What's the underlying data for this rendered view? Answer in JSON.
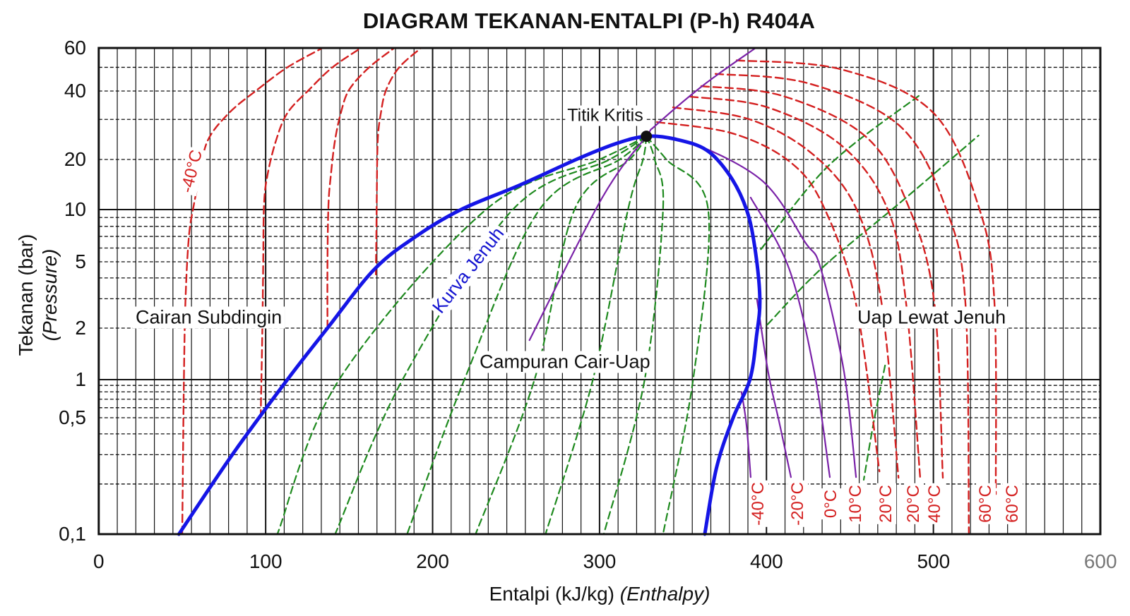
{
  "chart_data": {
    "type": "line",
    "title": "DIAGRAM TEKANAN-ENTALPI (P-h) R404A",
    "xlabel": "Entalpi (kJ/kg)",
    "xlabel_italic": "(Enthalpy)",
    "ylabel": "Tekanan (bar)",
    "ylabel_italic": "(Pressure)",
    "xlim": [
      0,
      600
    ],
    "ylim": [
      0.1,
      60
    ],
    "yscale": "log",
    "grid": true,
    "x_ticks": [
      "0",
      "100",
      "200",
      "300",
      "400",
      "500",
      "600"
    ],
    "x_tick_values": [
      0,
      100,
      200,
      300,
      400,
      500,
      600
    ],
    "y_ticks": [
      "60",
      "40",
      "20",
      "10",
      "5",
      "2",
      "1",
      "0,5",
      "0,1"
    ],
    "y_tick_values": [
      60,
      40,
      20,
      10,
      5,
      2,
      1,
      0.5,
      0.1
    ],
    "colors": {
      "saturation": "#1515e6",
      "isotherm": "#d42020",
      "quality": "#1f8a1f",
      "isentrope": "#7a22a8",
      "grid": "#111111"
    },
    "saturation_curve": {
      "name": "Kurva Jenuh",
      "points": [
        [
          48,
          0.1
        ],
        [
          80,
          0.3
        ],
        [
          113,
          1
        ],
        [
          137,
          2
        ],
        [
          165,
          4.5
        ],
        [
          190,
          7
        ],
        [
          217,
          10
        ],
        [
          252,
          14
        ],
        [
          286,
          20
        ],
        [
          310,
          23.5
        ],
        [
          328,
          25.3
        ],
        [
          345,
          24.6
        ],
        [
          364,
          22
        ],
        [
          378,
          16
        ],
        [
          388,
          10
        ],
        [
          393,
          6
        ],
        [
          396,
          3
        ],
        [
          394,
          1.8
        ],
        [
          390,
          1
        ],
        [
          380,
          0.5
        ],
        [
          370,
          0.25
        ],
        [
          363,
          0.1
        ]
      ]
    },
    "critical_point": {
      "label": "Titik Kritis",
      "h": 328,
      "p": 25.3
    },
    "liquid_isotherms": [
      [
        [
          50,
          0.1
        ],
        [
          51,
          1
        ],
        [
          52,
          3
        ],
        [
          54,
          7
        ],
        [
          57,
          10.7
        ],
        [
          60,
          15
        ],
        [
          65,
          24
        ],
        [
          78,
          32
        ],
        [
          95,
          40.5
        ],
        [
          113,
          50
        ],
        [
          134,
          60
        ]
      ],
      [
        [
          97,
          0.5
        ],
        [
          98,
          2
        ],
        [
          98.5,
          5
        ],
        [
          99,
          10.7
        ],
        [
          101,
          16
        ],
        [
          106,
          24
        ],
        [
          113,
          32
        ],
        [
          126,
          40.5
        ],
        [
          140,
          50
        ],
        [
          157,
          60
        ]
      ],
      [
        [
          137,
          2
        ],
        [
          137,
          5
        ],
        [
          137.6,
          10.7
        ],
        [
          139,
          16
        ],
        [
          141.4,
          24
        ],
        [
          145,
          32
        ],
        [
          150,
          40.5
        ],
        [
          162,
          50
        ],
        [
          177,
          60
        ]
      ],
      [
        [
          166,
          4.2
        ],
        [
          166.5,
          10.7
        ],
        [
          167.1,
          24
        ],
        [
          169,
          32
        ],
        [
          172.2,
          40.5
        ],
        [
          180,
          50
        ],
        [
          193,
          60
        ]
      ]
    ],
    "vapor_isotherms": [
      [
        [
          334.3,
          29.2
        ],
        [
          380,
          26
        ],
        [
          415,
          19
        ],
        [
          435,
          10
        ],
        [
          453.5,
          2.82
        ],
        [
          467.6,
          0.238
        ]
      ],
      [
        [
          344,
          33.9
        ],
        [
          390,
          30
        ],
        [
          428,
          21
        ],
        [
          454,
          10
        ],
        [
          468.9,
          2.82
        ],
        [
          479,
          0.218
        ]
      ],
      [
        [
          354.2,
          37.8
        ],
        [
          400,
          34
        ],
        [
          445,
          23
        ],
        [
          472.6,
          10
        ],
        [
          483.6,
          2.82
        ],
        [
          492,
          0.218
        ]
      ],
      [
        [
          360.9,
          41.9
        ],
        [
          410,
          38
        ],
        [
          460,
          25
        ],
        [
          485.8,
          10
        ],
        [
          500.5,
          2.82
        ],
        [
          505.6,
          0.218
        ]
      ],
      [
        [
          369.4,
          47
        ],
        [
          425,
          43
        ],
        [
          480,
          28
        ],
        [
          507.7,
          10
        ],
        [
          519.1,
          2.82
        ],
        [
          521.2,
          0.1
        ]
      ],
      [
        [
          382.1,
          53.4
        ],
        [
          445,
          49
        ],
        [
          500,
          32
        ],
        [
          527.6,
          10
        ],
        [
          536.5,
          2.82
        ],
        [
          537.3,
          0.174
        ]
      ]
    ],
    "quality_lines": [
      [
        [
          328,
          25.3
        ],
        [
          300,
          20
        ],
        [
          232,
          10
        ],
        [
          144,
          1
        ],
        [
          107,
          0.1
        ]
      ],
      [
        [
          328,
          25.3
        ],
        [
          306,
          20
        ],
        [
          248,
          10
        ],
        [
          182,
          1
        ],
        [
          141.6,
          0.1
        ]
      ],
      [
        [
          328,
          25.3
        ],
        [
          312,
          20
        ],
        [
          264,
          10
        ],
        [
          219,
          1
        ],
        [
          184.7,
          0.1
        ]
      ],
      [
        [
          328,
          25.3
        ],
        [
          318,
          20
        ],
        [
          285,
          10
        ],
        [
          261,
          1
        ],
        [
          225.7,
          0.1
        ]
      ],
      [
        [
          328,
          25.3
        ],
        [
          326,
          20
        ],
        [
          317,
          10
        ],
        [
          296,
          1
        ],
        [
          267.6,
          0.1
        ]
      ],
      [
        [
          328,
          25.3
        ],
        [
          333,
          20
        ],
        [
          338,
          10
        ],
        [
          327,
          1
        ],
        [
          302.5,
          0.1
        ]
      ],
      [
        [
          328,
          25.3
        ],
        [
          340,
          20
        ],
        [
          365,
          10
        ],
        [
          356,
          1
        ],
        [
          338,
          0.1
        ]
      ]
    ],
    "superheat_green_lines": [
      [
        [
          396.6,
          5.9
        ],
        [
          437,
          18.3
        ],
        [
          491.6,
          38.3
        ]
      ],
      [
        [
          400.5,
          2.1
        ],
        [
          433,
          4.57
        ],
        [
          480,
          11
        ],
        [
          527,
          25.5
        ]
      ],
      [
        [
          471,
          1.21
        ],
        [
          464,
          0.46
        ],
        [
          458.2,
          0.212
        ]
      ]
    ],
    "isentropes": [
      [
        [
          258,
          1.7
        ],
        [
          301.6,
          11.8
        ],
        [
          328,
          25.3
        ],
        [
          333.5,
          28.2
        ],
        [
          362.6,
          42.5
        ],
        [
          393.4,
          60
        ]
      ],
      [
        [
          385,
          0.8
        ],
        [
          388,
          0.45
        ],
        [
          390.5,
          0.22
        ]
      ],
      [
        [
          394.3,
          2.96
        ],
        [
          401,
          1.1
        ],
        [
          408,
          0.45
        ],
        [
          414.6,
          0.22
        ]
      ],
      [
        [
          390.5,
          11.8
        ],
        [
          413.4,
          4.57
        ],
        [
          428.6,
          1.11
        ],
        [
          437.9,
          0.22
        ]
      ],
      [
        [
          328,
          25.3
        ],
        [
          355.4,
          23.6
        ],
        [
          397.7,
          14.8
        ],
        [
          423,
          6.5
        ],
        [
          432.4,
          4.57
        ],
        [
          446.4,
          1.11
        ],
        [
          453.6,
          0.22
        ]
      ]
    ],
    "region_labels": {
      "subcooled": "Cairan Subdingin",
      "mixture": "Campuran Cair-Uap",
      "superheated": "Uap Lewat Jenuh"
    },
    "isotherm_label_left": "-40°C",
    "bottom_labels": [
      "-40°C",
      "-20°C",
      "0°C",
      "10°C",
      "20°C",
      "20°C",
      "40°C",
      "60°C",
      "60°C"
    ]
  }
}
